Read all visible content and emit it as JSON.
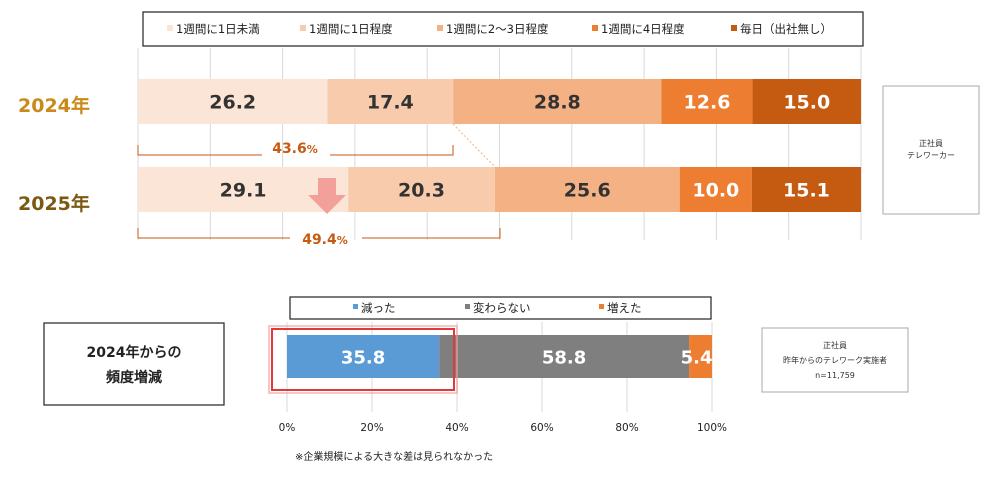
{
  "chart_data": [
    {
      "type": "bar",
      "stacked": "horizontal-100",
      "legend": [
        "1週間に1日未満",
        "1週間に1日程度",
        "1週間に2～3日程度",
        "1週間に4日程度",
        "毎日（出社無し）"
      ],
      "colors": [
        "#fbe5d6",
        "#f8cbad",
        "#f4b183",
        "#ed7d31",
        "#c55a11"
      ],
      "categories": [
        "2024年",
        "2025年"
      ],
      "values": [
        [
          26.2,
          17.4,
          28.8,
          12.6,
          15.0
        ],
        [
          29.1,
          20.3,
          25.6,
          10.0,
          15.1
        ]
      ],
      "annotations": [
        {
          "text": "43.6",
          "unit": "%"
        },
        {
          "text": "49.4",
          "unit": "%"
        }
      ],
      "note_box": [
        "正社員",
        "テレワーカー"
      ]
    },
    {
      "type": "bar",
      "stacked": "horizontal-100",
      "legend": [
        "減った",
        "変わらない",
        "増えた"
      ],
      "colors": [
        "#5b9bd5",
        "#7f7f7f",
        "#ed7d31"
      ],
      "category_label": [
        "2024年からの",
        "頻度増減"
      ],
      "values": [
        35.8,
        58.8,
        5.4
      ],
      "x_ticks": [
        "0%",
        "20%",
        "40%",
        "60%",
        "80%",
        "100%"
      ],
      "xlim": [
        0,
        100
      ],
      "footnote": "※企業規模による大きな差は見られなかった",
      "note_box": [
        "正社員",
        "昨年からのテレワーク実施者",
        "n=11,759"
      ]
    }
  ]
}
